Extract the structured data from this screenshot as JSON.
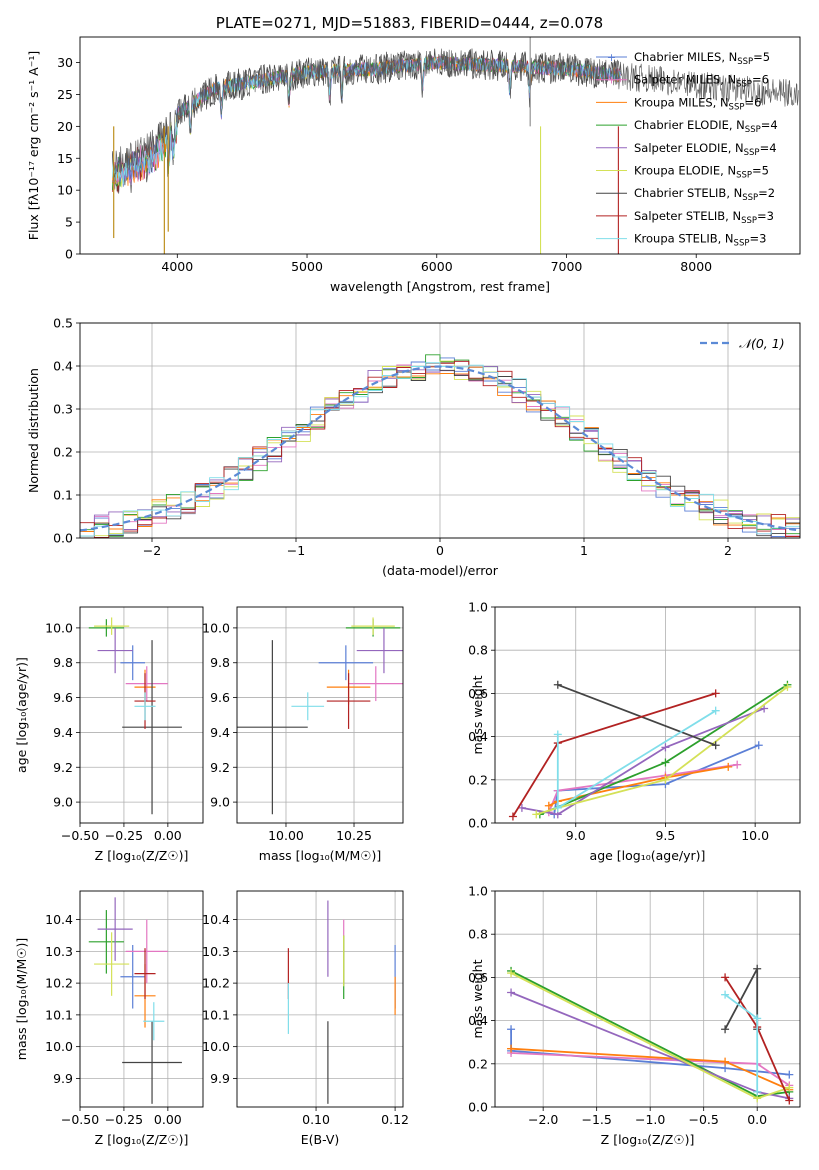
{
  "colors": {
    "chabrier_miles": "#5b7fd6",
    "salpeter_miles": "#e377c2",
    "kroupa_miles": "#ff7f0e",
    "chabrier_elodie": "#2ca02c",
    "salpeter_elodie": "#9467bd",
    "kroupa_elodie": "#d4e157",
    "chabrier_stelib": "#444444",
    "salpeter_stelib": "#b22222",
    "kroupa_stelib": "#80deea"
  },
  "chart_data": [
    {
      "type": "line",
      "title": "PLATE=0271, MJD=51883, FIBERID=0444, z=0.078",
      "xlabel": "wavelength [Angstrom, rest frame]",
      "ylabel": "Flux [fλ10⁻¹⁷ erg cm⁻² s⁻¹ A⁻¹]",
      "xlim": [
        3250,
        8800
      ],
      "ylim": [
        0,
        34
      ],
      "xticks": [
        "4000",
        "5000",
        "6000",
        "7000",
        "8000"
      ],
      "yticks": [
        "0",
        "5",
        "10",
        "15",
        "20",
        "25",
        "30"
      ],
      "legend": "top-right",
      "series": [
        {
          "name": "Chabrier MILES, N",
          "suffix": "=5"
        },
        {
          "name": "Salpeter MILES, N",
          "suffix": "=6"
        },
        {
          "name": "Kroupa MILES, N",
          "suffix": "=6"
        },
        {
          "name": "Chabrier ELODIE, N",
          "suffix": "=4"
        },
        {
          "name": "Salpeter ELODIE, N",
          "suffix": "=4"
        },
        {
          "name": "Kroupa ELODIE, N",
          "suffix": "=5"
        },
        {
          "name": "Chabrier STELIB, N",
          "suffix": "=2"
        },
        {
          "name": "Salpeter STELIB, N",
          "suffix": "=3"
        },
        {
          "name": "Kroupa STELIB, N",
          "suffix": "=3"
        }
      ],
      "legend_subscript": "SSP",
      "continuum": {
        "x": [
          3500,
          3800,
          4000,
          4300,
          4600,
          5000,
          5500,
          6000,
          6500,
          7000,
          7400,
          7800,
          8200,
          8800
        ],
        "y": [
          14,
          17,
          22,
          26,
          27,
          28.5,
          29,
          30,
          29.5,
          29,
          28,
          27,
          26,
          25
        ]
      }
    },
    {
      "type": "step",
      "xlabel": "(data-model)/error",
      "ylabel": "Normed distribution",
      "xlim": [
        -2.5,
        2.5
      ],
      "ylim": [
        0,
        0.5
      ],
      "xticks": [
        "−2",
        "−1",
        "0",
        "1",
        "2"
      ],
      "yticks": [
        "0.0",
        "0.1",
        "0.2",
        "0.3",
        "0.4",
        "0.5"
      ],
      "legend": "top-right",
      "legend_label": "𝒩(0, 1)",
      "bin_width": 0.1
    },
    {
      "type": "errorbar",
      "xlabel": "Z [log₁₀(Z/Z☉)]",
      "ylabel": "age  [log₁₀(age/yr)]",
      "xlim": [
        -0.5,
        0.2
      ],
      "ylim": [
        8.88,
        10.12
      ],
      "xticks": [
        "−0.50",
        "−0.25",
        "0.00"
      ],
      "yticks": [
        "9.0",
        "9.2",
        "9.4",
        "9.6",
        "9.8",
        "10.0"
      ],
      "points": [
        {
          "model": "chabrier_miles",
          "x": -0.2,
          "xerr": 0.07,
          "y": 9.8,
          "yerr": 0.1
        },
        {
          "model": "salpeter_miles",
          "x": -0.12,
          "xerr": 0.12,
          "y": 9.68,
          "yerr": 0.1
        },
        {
          "model": "kroupa_miles",
          "x": -0.13,
          "xerr": 0.06,
          "y": 9.66,
          "yerr": 0.1
        },
        {
          "model": "chabrier_elodie",
          "x": -0.35,
          "xerr": 0.1,
          "y": 10.0,
          "yerr": 0.05
        },
        {
          "model": "salpeter_elodie",
          "x": -0.3,
          "xerr": 0.1,
          "y": 9.87,
          "yerr": 0.13
        },
        {
          "model": "kroupa_elodie",
          "x": -0.32,
          "xerr": 0.1,
          "y": 10.01,
          "yerr": 0.05
        },
        {
          "model": "chabrier_stelib",
          "x": -0.09,
          "xerr": 0.17,
          "y": 9.43,
          "yerr": 0.5
        },
        {
          "model": "salpeter_stelib",
          "x": -0.13,
          "xerr": 0.06,
          "y": 9.58,
          "yerr": 0.16
        },
        {
          "model": "kroupa_stelib",
          "x": -0.13,
          "xerr": 0.06,
          "y": 9.55,
          "yerr": 0.08
        }
      ]
    },
    {
      "type": "errorbar",
      "xlabel": "mass [log₁₀(M/M☉)]",
      "xlim": [
        9.82,
        10.43
      ],
      "ylim": [
        8.88,
        10.12
      ],
      "xticks": [
        "10.00",
        "10.25"
      ],
      "yticks": [
        "9.0",
        "9.2",
        "9.4",
        "9.6",
        "9.8",
        "10.0"
      ],
      "points": [
        {
          "model": "chabrier_miles",
          "x": 10.22,
          "xerr": 0.1,
          "y": 9.8,
          "yerr": 0.1
        },
        {
          "model": "salpeter_miles",
          "x": 10.33,
          "xerr": 0.1,
          "y": 9.68,
          "yerr": 0.1
        },
        {
          "model": "kroupa_miles",
          "x": 10.23,
          "xerr": 0.08,
          "y": 9.66,
          "yerr": 0.1
        },
        {
          "model": "chabrier_elodie",
          "x": 10.32,
          "xerr": 0.1,
          "y": 10.0,
          "yerr": 0.05
        },
        {
          "model": "salpeter_elodie",
          "x": 10.36,
          "xerr": 0.1,
          "y": 9.87,
          "yerr": 0.13
        },
        {
          "model": "kroupa_elodie",
          "x": 10.32,
          "xerr": 0.08,
          "y": 10.01,
          "yerr": 0.05
        },
        {
          "model": "chabrier_stelib",
          "x": 9.95,
          "xerr": 0.13,
          "y": 9.43,
          "yerr": 0.5
        },
        {
          "model": "salpeter_stelib",
          "x": 10.23,
          "xerr": 0.08,
          "y": 9.58,
          "yerr": 0.16
        },
        {
          "model": "kroupa_stelib",
          "x": 10.08,
          "xerr": 0.06,
          "y": 9.55,
          "yerr": 0.08
        }
      ]
    },
    {
      "type": "line",
      "xlabel": "age  [log₁₀(age/yr)]",
      "ylabel": "mass weight",
      "xlim": [
        8.55,
        10.25
      ],
      "ylim": [
        0,
        1
      ],
      "xticks": [
        "9.0",
        "9.5",
        "10.0"
      ],
      "yticks": [
        "0.0",
        "0.2",
        "0.4",
        "0.6",
        "0.8",
        "1.0"
      ],
      "series": [
        {
          "model": "chabrier_miles",
          "x": [
            8.88,
            8.9,
            9.5,
            10.02
          ],
          "y": [
            0.04,
            0.15,
            0.18,
            0.36
          ]
        },
        {
          "model": "salpeter_miles",
          "x": [
            8.85,
            8.9,
            9.5,
            9.9
          ],
          "y": [
            0.05,
            0.15,
            0.22,
            0.27
          ]
        },
        {
          "model": "kroupa_miles",
          "x": [
            8.85,
            8.9,
            9.5,
            9.85
          ],
          "y": [
            0.08,
            0.1,
            0.21,
            0.26
          ]
        },
        {
          "model": "chabrier_elodie",
          "x": [
            8.8,
            9.5,
            10.18
          ],
          "y": [
            0.04,
            0.28,
            0.64
          ]
        },
        {
          "model": "salpeter_elodie",
          "x": [
            8.7,
            8.9,
            9.5,
            10.05
          ],
          "y": [
            0.07,
            0.04,
            0.35,
            0.53
          ]
        },
        {
          "model": "kroupa_elodie",
          "x": [
            8.78,
            8.9,
            9.5,
            10.18
          ],
          "y": [
            0.04,
            0.07,
            0.2,
            0.63
          ]
        },
        {
          "model": "chabrier_stelib",
          "x": [
            8.9,
            9.78
          ],
          "y": [
            0.64,
            0.36
          ]
        },
        {
          "model": "salpeter_stelib",
          "x": [
            8.65,
            8.9,
            9.78
          ],
          "y": [
            0.03,
            0.37,
            0.6
          ]
        },
        {
          "model": "kroupa_stelib",
          "x": [
            8.9,
            8.9,
            9.78
          ],
          "y": [
            0.41,
            0.07,
            0.52
          ]
        }
      ]
    },
    {
      "type": "errorbar",
      "xlabel": "Z [log₁₀(Z/Z☉)]",
      "ylabel": "mass [log₁₀(M/M☉)]",
      "xlim": [
        -0.5,
        0.2
      ],
      "ylim": [
        9.81,
        10.49
      ],
      "xticks": [
        "−0.50",
        "−0.25",
        "0.00"
      ],
      "yticks": [
        "9.9",
        "10.0",
        "10.1",
        "10.2",
        "10.3",
        "10.4"
      ],
      "points": [
        {
          "model": "chabrier_miles",
          "x": -0.2,
          "xerr": 0.07,
          "y": 10.22,
          "yerr": 0.1
        },
        {
          "model": "salpeter_miles",
          "x": -0.12,
          "xerr": 0.12,
          "y": 10.3,
          "yerr": 0.1
        },
        {
          "model": "kroupa_miles",
          "x": -0.13,
          "xerr": 0.06,
          "y": 10.16,
          "yerr": 0.1
        },
        {
          "model": "chabrier_elodie",
          "x": -0.35,
          "xerr": 0.1,
          "y": 10.33,
          "yerr": 0.1
        },
        {
          "model": "salpeter_elodie",
          "x": -0.3,
          "xerr": 0.1,
          "y": 10.37,
          "yerr": 0.1
        },
        {
          "model": "kroupa_elodie",
          "x": -0.32,
          "xerr": 0.1,
          "y": 10.26,
          "yerr": 0.1
        },
        {
          "model": "chabrier_stelib",
          "x": -0.09,
          "xerr": 0.17,
          "y": 9.95,
          "yerr": 0.13
        },
        {
          "model": "salpeter_stelib",
          "x": -0.13,
          "xerr": 0.06,
          "y": 10.23,
          "yerr": 0.08
        },
        {
          "model": "kroupa_stelib",
          "x": -0.08,
          "xerr": 0.06,
          "y": 10.08,
          "yerr": 0.06
        }
      ]
    },
    {
      "type": "errorbar",
      "xlabel": "E(B-V)",
      "xlim": [
        0.08,
        0.122
      ],
      "ylim": [
        9.81,
        10.49
      ],
      "xticks": [
        "0.10",
        "0.12"
      ],
      "yticks": [
        "9.9",
        "10.0",
        "10.1",
        "10.2",
        "10.3",
        "10.4"
      ],
      "points": [
        {
          "model": "chabrier_miles",
          "x": 0.12,
          "y": 10.22,
          "yerr": 0.1
        },
        {
          "model": "salpeter_miles",
          "x": 0.107,
          "y": 10.3,
          "yerr": 0.1
        },
        {
          "model": "kroupa_miles",
          "x": 0.12,
          "y": 10.16,
          "yerr": 0.06
        },
        {
          "model": "chabrier_elodie",
          "x": 0.107,
          "y": 10.25,
          "yerr": 0.1
        },
        {
          "model": "salpeter_elodie",
          "x": 0.103,
          "y": 10.34,
          "yerr": 0.12
        },
        {
          "model": "kroupa_elodie",
          "x": 0.107,
          "y": 10.27,
          "yerr": 0.08
        },
        {
          "model": "chabrier_stelib",
          "x": 0.103,
          "y": 9.95,
          "yerr": 0.13
        },
        {
          "model": "salpeter_stelib",
          "x": 0.093,
          "y": 10.23,
          "yerr": 0.08
        },
        {
          "model": "kroupa_stelib",
          "x": 0.093,
          "y": 10.12,
          "yerr": 0.08
        }
      ]
    },
    {
      "type": "line",
      "xlabel": "Z [log₁₀(Z/Z☉)]",
      "ylabel": "mass weight",
      "xlim": [
        -2.45,
        0.4
      ],
      "ylim": [
        0,
        1
      ],
      "xticks": [
        "−2.0",
        "−1.5",
        "−1.0",
        "−0.5",
        "0.0"
      ],
      "yticks": [
        "0.0",
        "0.2",
        "0.4",
        "0.6",
        "0.8",
        "1.0"
      ],
      "series": [
        {
          "model": "chabrier_miles",
          "x": [
            -2.3,
            -2.3,
            -0.3,
            0.3
          ],
          "y": [
            0.36,
            0.26,
            0.18,
            0.15
          ]
        },
        {
          "model": "salpeter_miles",
          "x": [
            -2.3,
            0.0,
            0.3
          ],
          "y": [
            0.25,
            0.2,
            0.1
          ]
        },
        {
          "model": "kroupa_miles",
          "x": [
            -2.3,
            -0.3,
            0.3
          ],
          "y": [
            0.27,
            0.21,
            0.08
          ]
        },
        {
          "model": "chabrier_elodie",
          "x": [
            -2.3,
            0.0,
            0.3
          ],
          "y": [
            0.63,
            0.05,
            0.07
          ]
        },
        {
          "model": "salpeter_elodie",
          "x": [
            -2.3,
            0.0,
            0.3
          ],
          "y": [
            0.53,
            0.07,
            0.04
          ]
        },
        {
          "model": "kroupa_elodie",
          "x": [
            -2.3,
            0.0,
            0.3
          ],
          "y": [
            0.62,
            0.04,
            0.09
          ]
        },
        {
          "model": "chabrier_stelib",
          "x": [
            -0.3,
            0.0,
            0.0
          ],
          "y": [
            0.36,
            0.64,
            0.36
          ]
        },
        {
          "model": "salpeter_stelib",
          "x": [
            -0.3,
            0.0,
            0.3
          ],
          "y": [
            0.6,
            0.37,
            0.03
          ]
        },
        {
          "model": "kroupa_stelib",
          "x": [
            -0.3,
            0.0,
            0.0
          ],
          "y": [
            0.52,
            0.41,
            0.07
          ]
        }
      ]
    }
  ]
}
